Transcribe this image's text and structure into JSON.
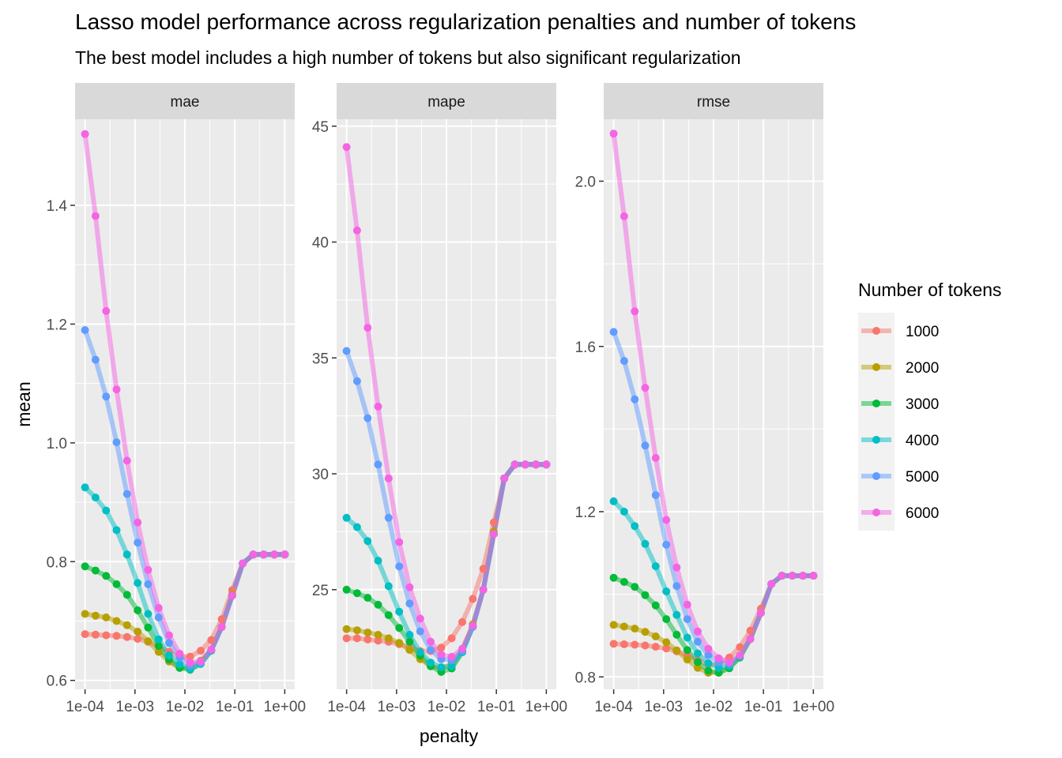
{
  "title": "Lasso model performance across regularization penalties and number of tokens",
  "subtitle": "The best model includes a high number of tokens but also significant regularization",
  "legend_title": "Number of tokens",
  "colors": {
    "1000": "#F8766D",
    "2000": "#B79F00",
    "3000": "#00BA38",
    "4000": "#00BFC4",
    "5000": "#619CFF",
    "6000": "#F564E3"
  },
  "chart_data": {
    "type": "line",
    "xlabel": "penalty",
    "ylabel": "mean",
    "x_scale": "log10",
    "x_ticks": [
      0.0001,
      0.001,
      0.01,
      0.1,
      1
    ],
    "x_tick_labels": [
      "1e-04",
      "1e-03",
      "1e-02",
      "1e-01",
      "1e+00"
    ],
    "x": [
      0.0001,
      0.000162,
      0.000264,
      0.000428,
      0.000695,
      0.00113,
      0.00183,
      0.00298,
      0.00483,
      0.00785,
      0.0127,
      0.0207,
      0.0336,
      0.0546,
      0.0886,
      0.144,
      0.234,
      0.379,
      0.616,
      1
    ],
    "legend_entries": [
      "1000",
      "2000",
      "3000",
      "4000",
      "5000",
      "6000"
    ],
    "panels": [
      {
        "strip": "mae",
        "ylim": [
          0.585,
          1.545
        ],
        "y_ticks": [
          0.6,
          0.8,
          1.0,
          1.2,
          1.4
        ],
        "y_tick_labels": [
          "0.6",
          "0.8",
          "1.0",
          "1.2",
          "1.4"
        ],
        "series": [
          {
            "name": "1000",
            "values": [
              0.678,
              0.677,
              0.676,
              0.675,
              0.673,
              0.67,
              0.665,
              0.658,
              0.648,
              0.64,
              0.64,
              0.65,
              0.668,
              0.703,
              0.752,
              0.797,
              0.812,
              0.812,
              0.812,
              0.812
            ]
          },
          {
            "name": "2000",
            "values": [
              0.712,
              0.709,
              0.706,
              0.7,
              0.693,
              0.682,
              0.666,
              0.648,
              0.632,
              0.621,
              0.622,
              0.633,
              0.652,
              0.69,
              0.745,
              0.797,
              0.812,
              0.812,
              0.812,
              0.812
            ]
          },
          {
            "name": "3000",
            "values": [
              0.792,
              0.785,
              0.776,
              0.762,
              0.744,
              0.718,
              0.689,
              0.658,
              0.635,
              0.621,
              0.618,
              0.628,
              0.65,
              0.69,
              0.743,
              0.797,
              0.812,
              0.812,
              0.812,
              0.812
            ]
          },
          {
            "name": "4000",
            "values": [
              0.925,
              0.908,
              0.886,
              0.853,
              0.812,
              0.764,
              0.712,
              0.669,
              0.642,
              0.627,
              0.619,
              0.628,
              0.65,
              0.69,
              0.743,
              0.797,
              0.812,
              0.812,
              0.812,
              0.812
            ]
          },
          {
            "name": "5000",
            "values": [
              1.19,
              1.14,
              1.078,
              1.001,
              0.914,
              0.832,
              0.762,
              0.706,
              0.663,
              0.638,
              0.625,
              0.63,
              0.651,
              0.69,
              0.743,
              0.797,
              0.812,
              0.812,
              0.812,
              0.812
            ]
          },
          {
            "name": "6000",
            "values": [
              1.52,
              1.382,
              1.222,
              1.09,
              0.97,
              0.866,
              0.786,
              0.722,
              0.676,
              0.645,
              0.63,
              0.632,
              0.652,
              0.69,
              0.743,
              0.797,
              0.812,
              0.812,
              0.812,
              0.812
            ]
          }
        ]
      },
      {
        "strip": "mape",
        "ylim": [
          20.7,
          45.3
        ],
        "y_ticks": [
          25,
          30,
          35,
          40,
          45
        ],
        "y_tick_labels": [
          "25",
          "30",
          "35",
          "40",
          "45"
        ],
        "series": [
          {
            "name": "1000",
            "values": [
              22.9,
              22.9,
              22.85,
              22.8,
              22.75,
              22.65,
              22.5,
              22.35,
              22.35,
              22.5,
              22.9,
              23.6,
              24.6,
              25.9,
              27.9,
              29.8,
              30.4,
              30.4,
              30.4,
              30.4
            ]
          },
          {
            "name": "2000",
            "values": [
              23.3,
              23.25,
              23.15,
              23.05,
              22.9,
              22.7,
              22.4,
              22.0,
              21.7,
              21.6,
              21.8,
              22.4,
              23.5,
              25.0,
              27.5,
              29.8,
              30.4,
              30.4,
              30.4,
              30.4
            ]
          },
          {
            "name": "3000",
            "values": [
              25.0,
              24.85,
              24.65,
              24.35,
              23.9,
              23.35,
              22.75,
              22.15,
              21.7,
              21.45,
              21.6,
              22.3,
              23.4,
              25.0,
              27.4,
              29.8,
              30.4,
              30.4,
              30.4,
              30.4
            ]
          },
          {
            "name": "4000",
            "values": [
              28.1,
              27.7,
              27.1,
              26.25,
              25.15,
              24.05,
              23.05,
              22.3,
              21.85,
              21.65,
              21.7,
              22.3,
              23.4,
              25.0,
              27.4,
              29.8,
              30.4,
              30.4,
              30.4,
              30.4
            ]
          },
          {
            "name": "5000",
            "values": [
              35.3,
              34.0,
              32.4,
              30.4,
              28.1,
              26.0,
              24.4,
              23.2,
              22.4,
              22.0,
              21.95,
              22.35,
              23.4,
              25.0,
              27.4,
              29.8,
              30.4,
              30.4,
              30.4,
              30.4
            ]
          },
          {
            "name": "6000",
            "values": [
              44.1,
              40.5,
              36.3,
              32.9,
              29.8,
              27.05,
              25.1,
              23.75,
              22.75,
              22.2,
              22.1,
              22.45,
              23.45,
              25.0,
              27.4,
              29.8,
              30.4,
              30.4,
              30.4,
              30.4
            ]
          }
        ]
      },
      {
        "strip": "rmse",
        "ylim": [
          0.77,
          2.15
        ],
        "y_ticks": [
          0.8,
          1.2,
          1.6,
          2.0
        ],
        "y_tick_labels": [
          "0.8",
          "1.2",
          "1.6",
          "2.0"
        ],
        "series": [
          {
            "name": "1000",
            "values": [
              0.88,
              0.879,
              0.878,
              0.876,
              0.873,
              0.869,
              0.862,
              0.852,
              0.84,
              0.83,
              0.832,
              0.847,
              0.872,
              0.912,
              0.965,
              1.025,
              1.045,
              1.045,
              1.045,
              1.045
            ]
          },
          {
            "name": "2000",
            "values": [
              0.926,
              0.922,
              0.917,
              0.909,
              0.898,
              0.884,
              0.864,
              0.842,
              0.822,
              0.81,
              0.811,
              0.824,
              0.849,
              0.892,
              0.955,
              1.025,
              1.045,
              1.045,
              1.045,
              1.045
            ]
          },
          {
            "name": "3000",
            "values": [
              1.04,
              1.03,
              1.018,
              0.998,
              0.973,
              0.94,
              0.902,
              0.865,
              0.836,
              0.815,
              0.81,
              0.821,
              0.847,
              0.892,
              0.955,
              1.025,
              1.045,
              1.045,
              1.045,
              1.045
            ]
          },
          {
            "name": "4000",
            "values": [
              1.225,
              1.2,
              1.165,
              1.122,
              1.068,
              1.007,
              0.95,
              0.895,
              0.857,
              0.833,
              0.822,
              0.826,
              0.849,
              0.892,
              0.955,
              1.025,
              1.045,
              1.045,
              1.045,
              1.045
            ]
          },
          {
            "name": "5000",
            "values": [
              1.635,
              1.565,
              1.472,
              1.36,
              1.24,
              1.12,
              1.02,
              0.94,
              0.885,
              0.853,
              0.835,
              0.832,
              0.851,
              0.892,
              0.955,
              1.025,
              1.045,
              1.045,
              1.045,
              1.045
            ]
          },
          {
            "name": "6000",
            "values": [
              2.115,
              1.915,
              1.685,
              1.5,
              1.33,
              1.18,
              1.065,
              0.975,
              0.91,
              0.868,
              0.845,
              0.836,
              0.852,
              0.892,
              0.955,
              1.025,
              1.045,
              1.045,
              1.045,
              1.045
            ]
          }
        ]
      }
    ]
  }
}
